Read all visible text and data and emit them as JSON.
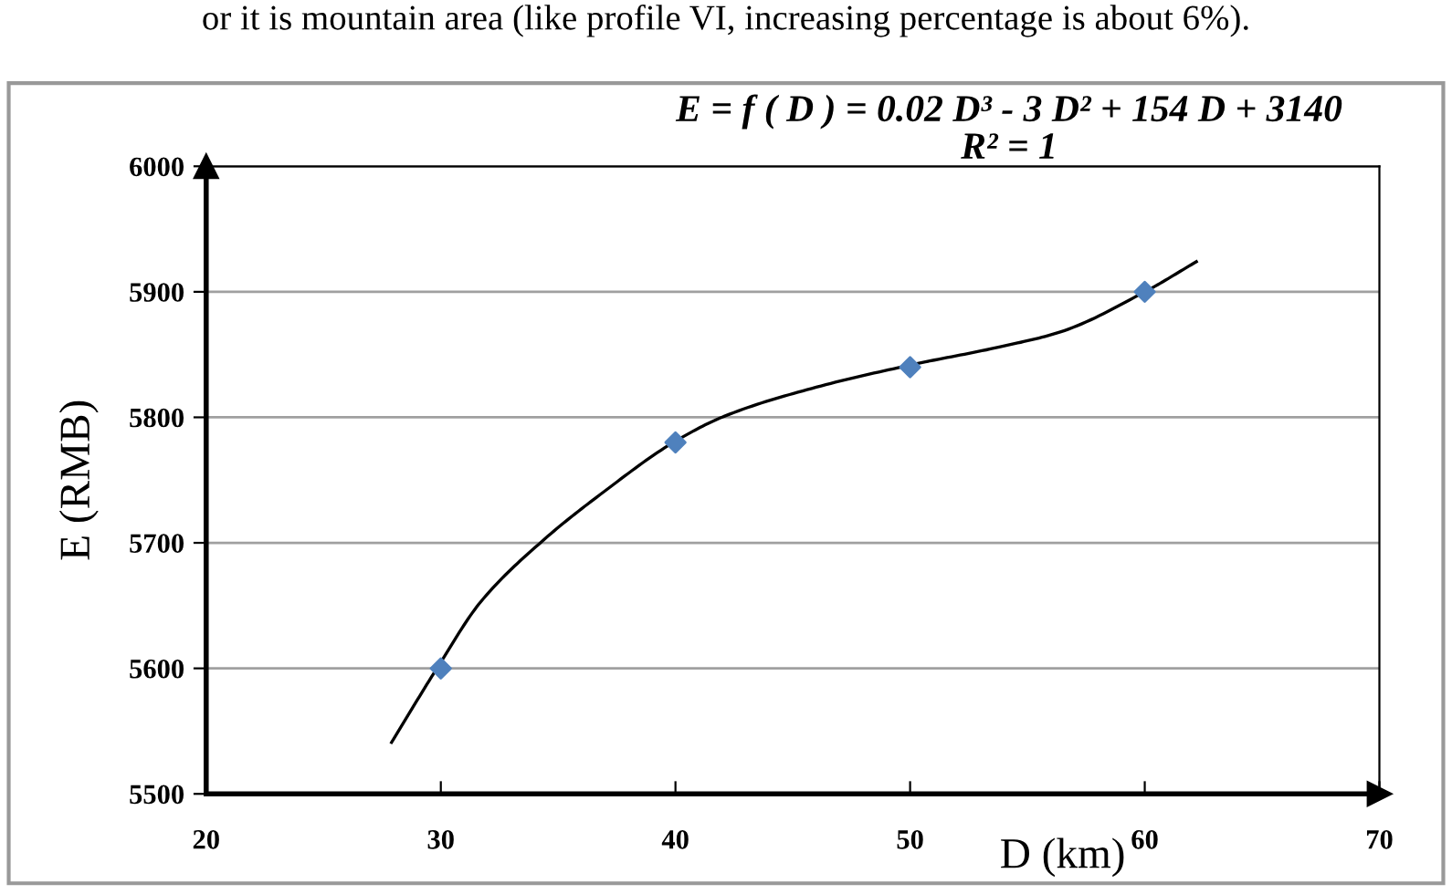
{
  "chart_data": {
    "type": "scatter",
    "xlabel": "D (km)",
    "ylabel": "E (RMB)",
    "annotations": [
      "or it is mountain area (like profile VI, increasing percentage is about 6%).",
      "E = f ( D ) = 0.02 D³ - 3 D² + 154 D + 3140",
      "R² = 1"
    ],
    "series": [
      {
        "color": "#4f81bd",
        "marker": "diamond",
        "x": [
          30,
          40,
          50,
          60
        ],
        "values": [
          5600,
          5780,
          5840,
          5900
        ]
      },
      {
        "type": "line",
        "color": "#000000",
        "marker": "none",
        "line_style": "solid",
        "x": [
          27.9,
          29.9,
          31.7,
          34.3,
          36.9,
          40.0,
          42.1,
          46.0,
          50.1,
          53.8,
          56.4,
          60.1,
          62.2
        ],
        "values": [
          5541,
          5602,
          5653,
          5701,
          5740,
          5781,
          5801,
          5824,
          5842,
          5856,
          5868,
          5901,
          5924
        ]
      }
    ],
    "xlim": [
      20,
      70
    ],
    "ylim": [
      5500,
      6000
    ],
    "xticks": [
      20,
      30,
      40,
      50,
      60,
      70
    ],
    "yticks": [
      5500,
      5600,
      5700,
      5800,
      5900,
      6000
    ],
    "grid": "y",
    "legend": false
  }
}
